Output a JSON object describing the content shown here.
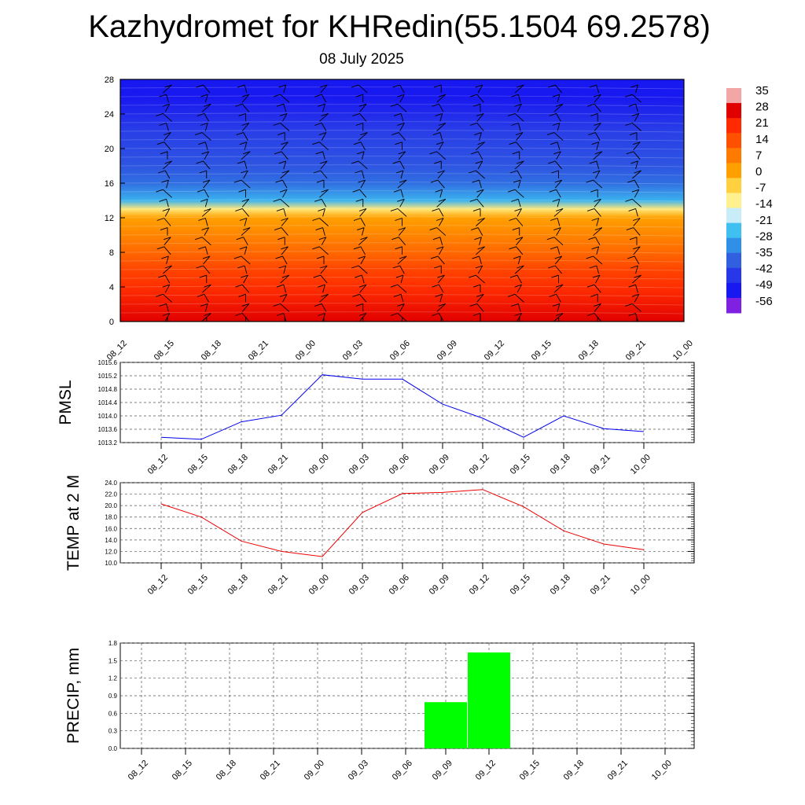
{
  "title": "Kazhydromet for KHRedin(55.1504 69.2578)",
  "subtitle": "08 July 2025",
  "x_categories": [
    "08_12",
    "08_15",
    "08_18",
    "08_21",
    "09_00",
    "09_03",
    "09_06",
    "09_09",
    "09_12",
    "09_15",
    "09_18",
    "09_21",
    "10_00"
  ],
  "colors": {
    "pmsl_line": "#0000ee",
    "temp_line": "#ee0000",
    "precip_bar": "#00ff00",
    "grid": "#555555"
  },
  "chart_data": [
    {
      "type": "heatmap",
      "description_key": "vertical cross-section of temperature with wind barbs",
      "ylabel": "",
      "ylim": [
        0,
        28
      ],
      "yticks": [
        0,
        4,
        8,
        12,
        16,
        20,
        24,
        28
      ],
      "levels": [
        0,
        2,
        4,
        6,
        8,
        10,
        12,
        13,
        14,
        16,
        18,
        20,
        22,
        24,
        26,
        28
      ],
      "temperature_profile": [
        28,
        24,
        20,
        16,
        10,
        5,
        0,
        -12,
        -30,
        -40,
        -44,
        -46,
        -48,
        -52,
        -56,
        -56
      ],
      "colorbar": {
        "ticks": [
          "35",
          "28",
          "21",
          "14",
          "7",
          "0",
          "-7",
          "-14",
          "-21",
          "-28",
          "-35",
          "-42",
          "-49",
          "-56"
        ],
        "colors": [
          "#f2a6a6",
          "#e00000",
          "#ff2a00",
          "#ff5000",
          "#ff7a00",
          "#ffa000",
          "#ffd040",
          "#fff090",
          "#c8ecf8",
          "#40c0f0",
          "#3090e8",
          "#3060e0",
          "#2838e8",
          "#1818f0",
          "#8020e0"
        ]
      }
    },
    {
      "type": "line",
      "ylabel": "PMSL",
      "ylim": [
        1013.2,
        1015.6
      ],
      "yticks": [
        "1013.2",
        "1013.6",
        "1014.0",
        "1014.4",
        "1014.8",
        "1015.2",
        "1015.6"
      ],
      "series": [
        {
          "values": [
            1013.36,
            1013.3,
            1013.82,
            1014.02,
            1015.23,
            1015.1,
            1015.1,
            1014.35,
            1013.93,
            1013.36,
            1014.0,
            1013.62,
            1013.53
          ]
        }
      ]
    },
    {
      "type": "line",
      "ylabel": "TEMP at 2 M",
      "ylim": [
        10.0,
        24.0
      ],
      "yticks": [
        "10.0",
        "12.0",
        "14.0",
        "16.0",
        "18.0",
        "20.0",
        "22.0",
        "24.0"
      ],
      "series": [
        {
          "values": [
            20.3,
            18.0,
            13.8,
            12.0,
            11.1,
            18.8,
            22.1,
            22.3,
            22.8,
            19.8,
            15.6,
            13.3,
            12.3
          ]
        }
      ]
    },
    {
      "type": "bar",
      "ylabel": "PRECIP, mm",
      "ylim": [
        0.0,
        1.8
      ],
      "yticks": [
        "0.0",
        "0.3",
        "0.6",
        "0.9",
        "1.2",
        "1.5",
        "1.8"
      ],
      "series": [
        {
          "values": [
            0,
            0,
            0,
            0,
            0,
            0,
            0,
            0.79,
            1.64,
            0,
            0,
            0,
            0
          ]
        }
      ]
    }
  ]
}
